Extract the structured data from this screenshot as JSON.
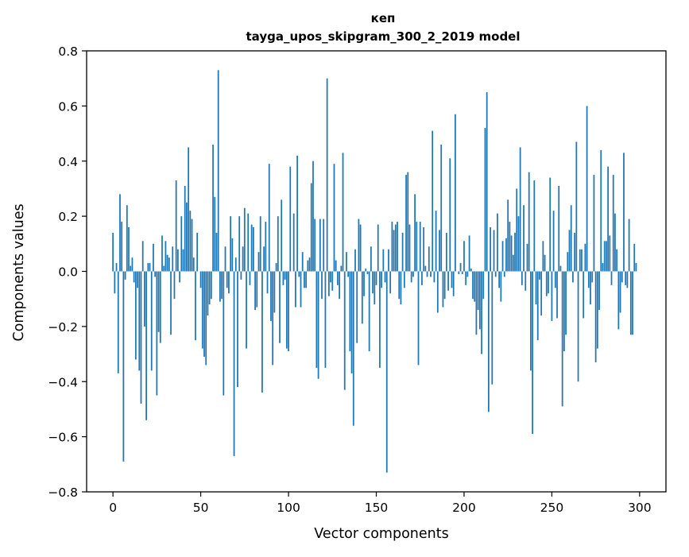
{
  "chart_data": {
    "type": "bar",
    "title_line1": "кеп",
    "title_line2": "tayga_upos_skipgram_300_2_2019 model",
    "xlabel": "Vector components",
    "ylabel": "Components values",
    "xlim": [
      -15,
      315
    ],
    "ylim": [
      -0.8,
      0.8
    ],
    "xticks": [
      0,
      50,
      100,
      150,
      200,
      250,
      300
    ],
    "xtick_labels": [
      "0",
      "50",
      "100",
      "150",
      "200",
      "250",
      "300"
    ],
    "yticks": [
      -0.8,
      -0.6,
      -0.4,
      -0.2,
      0.0,
      0.2,
      0.4,
      0.6,
      0.8
    ],
    "ytick_labels": [
      "−0.8",
      "−0.6",
      "−0.4",
      "−0.2",
      "0.0",
      "0.2",
      "0.4",
      "0.6",
      "0.8"
    ],
    "bar_color": "#1f77b4",
    "values": [
      0.14,
      -0.08,
      0.03,
      -0.37,
      0.28,
      0.18,
      -0.69,
      -0.03,
      0.24,
      0.16,
      0.02,
      0.05,
      -0.04,
      -0.32,
      -0.06,
      -0.36,
      -0.48,
      0.11,
      -0.2,
      -0.54,
      0.03,
      0.03,
      -0.36,
      0.1,
      -0.02,
      -0.45,
      -0.22,
      -0.26,
      0.13,
      0.02,
      0.11,
      0.06,
      0.05,
      -0.23,
      0.09,
      -0.1,
      0.33,
      0.08,
      -0.04,
      0.2,
      0.08,
      0.31,
      0.25,
      0.45,
      0.22,
      0.19,
      0.05,
      -0.25,
      0.14,
      0.0,
      -0.06,
      -0.28,
      -0.31,
      -0.34,
      -0.16,
      -0.12,
      -0.1,
      0.46,
      0.27,
      0.14,
      0.73,
      -0.11,
      -0.1,
      -0.45,
      0.09,
      -0.06,
      -0.08,
      0.2,
      0.12,
      -0.67,
      0.05,
      -0.42,
      0.2,
      -0.03,
      0.09,
      0.23,
      -0.28,
      0.21,
      -0.05,
      0.17,
      0.16,
      -0.14,
      -0.13,
      0.07,
      0.2,
      -0.44,
      0.09,
      0.18,
      -0.08,
      0.39,
      -0.18,
      -0.34,
      -0.15,
      0.03,
      0.2,
      -0.26,
      0.26,
      -0.05,
      -0.03,
      -0.28,
      -0.29,
      0.38,
      0.0,
      0.21,
      -0.13,
      0.42,
      -0.02,
      -0.13,
      0.07,
      -0.06,
      -0.06,
      0.04,
      0.05,
      0.32,
      0.4,
      0.19,
      -0.35,
      -0.39,
      0.19,
      -0.1,
      0.19,
      -0.35,
      0.7,
      -0.09,
      -0.04,
      -0.07,
      0.39,
      0.04,
      -0.05,
      -0.1,
      0.02,
      0.43,
      -0.43,
      0.07,
      -0.02,
      -0.29,
      -0.37,
      -0.56,
      0.08,
      -0.26,
      0.19,
      0.17,
      -0.19,
      -0.09,
      0.01,
      -0.01,
      -0.29,
      0.09,
      -0.08,
      -0.12,
      -0.05,
      0.17,
      -0.35,
      -0.06,
      0.08,
      -0.04,
      -0.73,
      0.08,
      -0.08,
      0.18,
      0.15,
      0.17,
      0.18,
      -0.1,
      -0.12,
      0.14,
      -0.06,
      0.35,
      0.36,
      0.17,
      -0.04,
      -0.02,
      0.28,
      0.18,
      -0.34,
      0.18,
      -0.05,
      0.16,
      0.02,
      -0.02,
      0.09,
      -0.02,
      0.51,
      -0.04,
      0.22,
      -0.15,
      0.15,
      0.46,
      -0.13,
      -0.1,
      0.14,
      -0.07,
      0.41,
      -0.06,
      -0.09,
      0.57,
      0.0,
      -0.01,
      0.03,
      -0.01,
      0.11,
      -0.05,
      -0.02,
      0.13,
      0.01,
      -0.1,
      -0.11,
      -0.23,
      -0.14,
      -0.21,
      -0.3,
      -0.1,
      0.52,
      0.65,
      -0.51,
      0.16,
      -0.41,
      0.15,
      -0.02,
      0.21,
      -0.06,
      -0.11,
      0.11,
      -0.02,
      0.12,
      0.26,
      0.18,
      0.13,
      0.06,
      0.14,
      0.3,
      0.2,
      0.45,
      -0.05,
      0.24,
      -0.07,
      0.1,
      0.36,
      -0.36,
      -0.59,
      0.33,
      -0.12,
      -0.25,
      -0.03,
      -0.16,
      0.11,
      0.06,
      -0.09,
      -0.08,
      0.34,
      -0.18,
      0.22,
      -0.06,
      -0.17,
      0.31,
      0.02,
      -0.49,
      -0.29,
      -0.23,
      0.07,
      0.15,
      0.24,
      -0.04,
      0.14,
      0.47,
      -0.4,
      0.08,
      0.08,
      -0.17,
      0.1,
      0.6,
      -0.06,
      -0.12,
      -0.04,
      0.35,
      -0.33,
      -0.28,
      -0.14,
      0.44,
      0.03,
      0.11,
      0.11,
      0.38,
      0.13,
      -0.05,
      0.35,
      0.21,
      0.08,
      -0.21,
      -0.15,
      -0.04,
      0.43,
      -0.05,
      -0.06,
      0.19,
      -0.23,
      -0.23,
      0.1,
      0.03,
      0.0
    ]
  }
}
